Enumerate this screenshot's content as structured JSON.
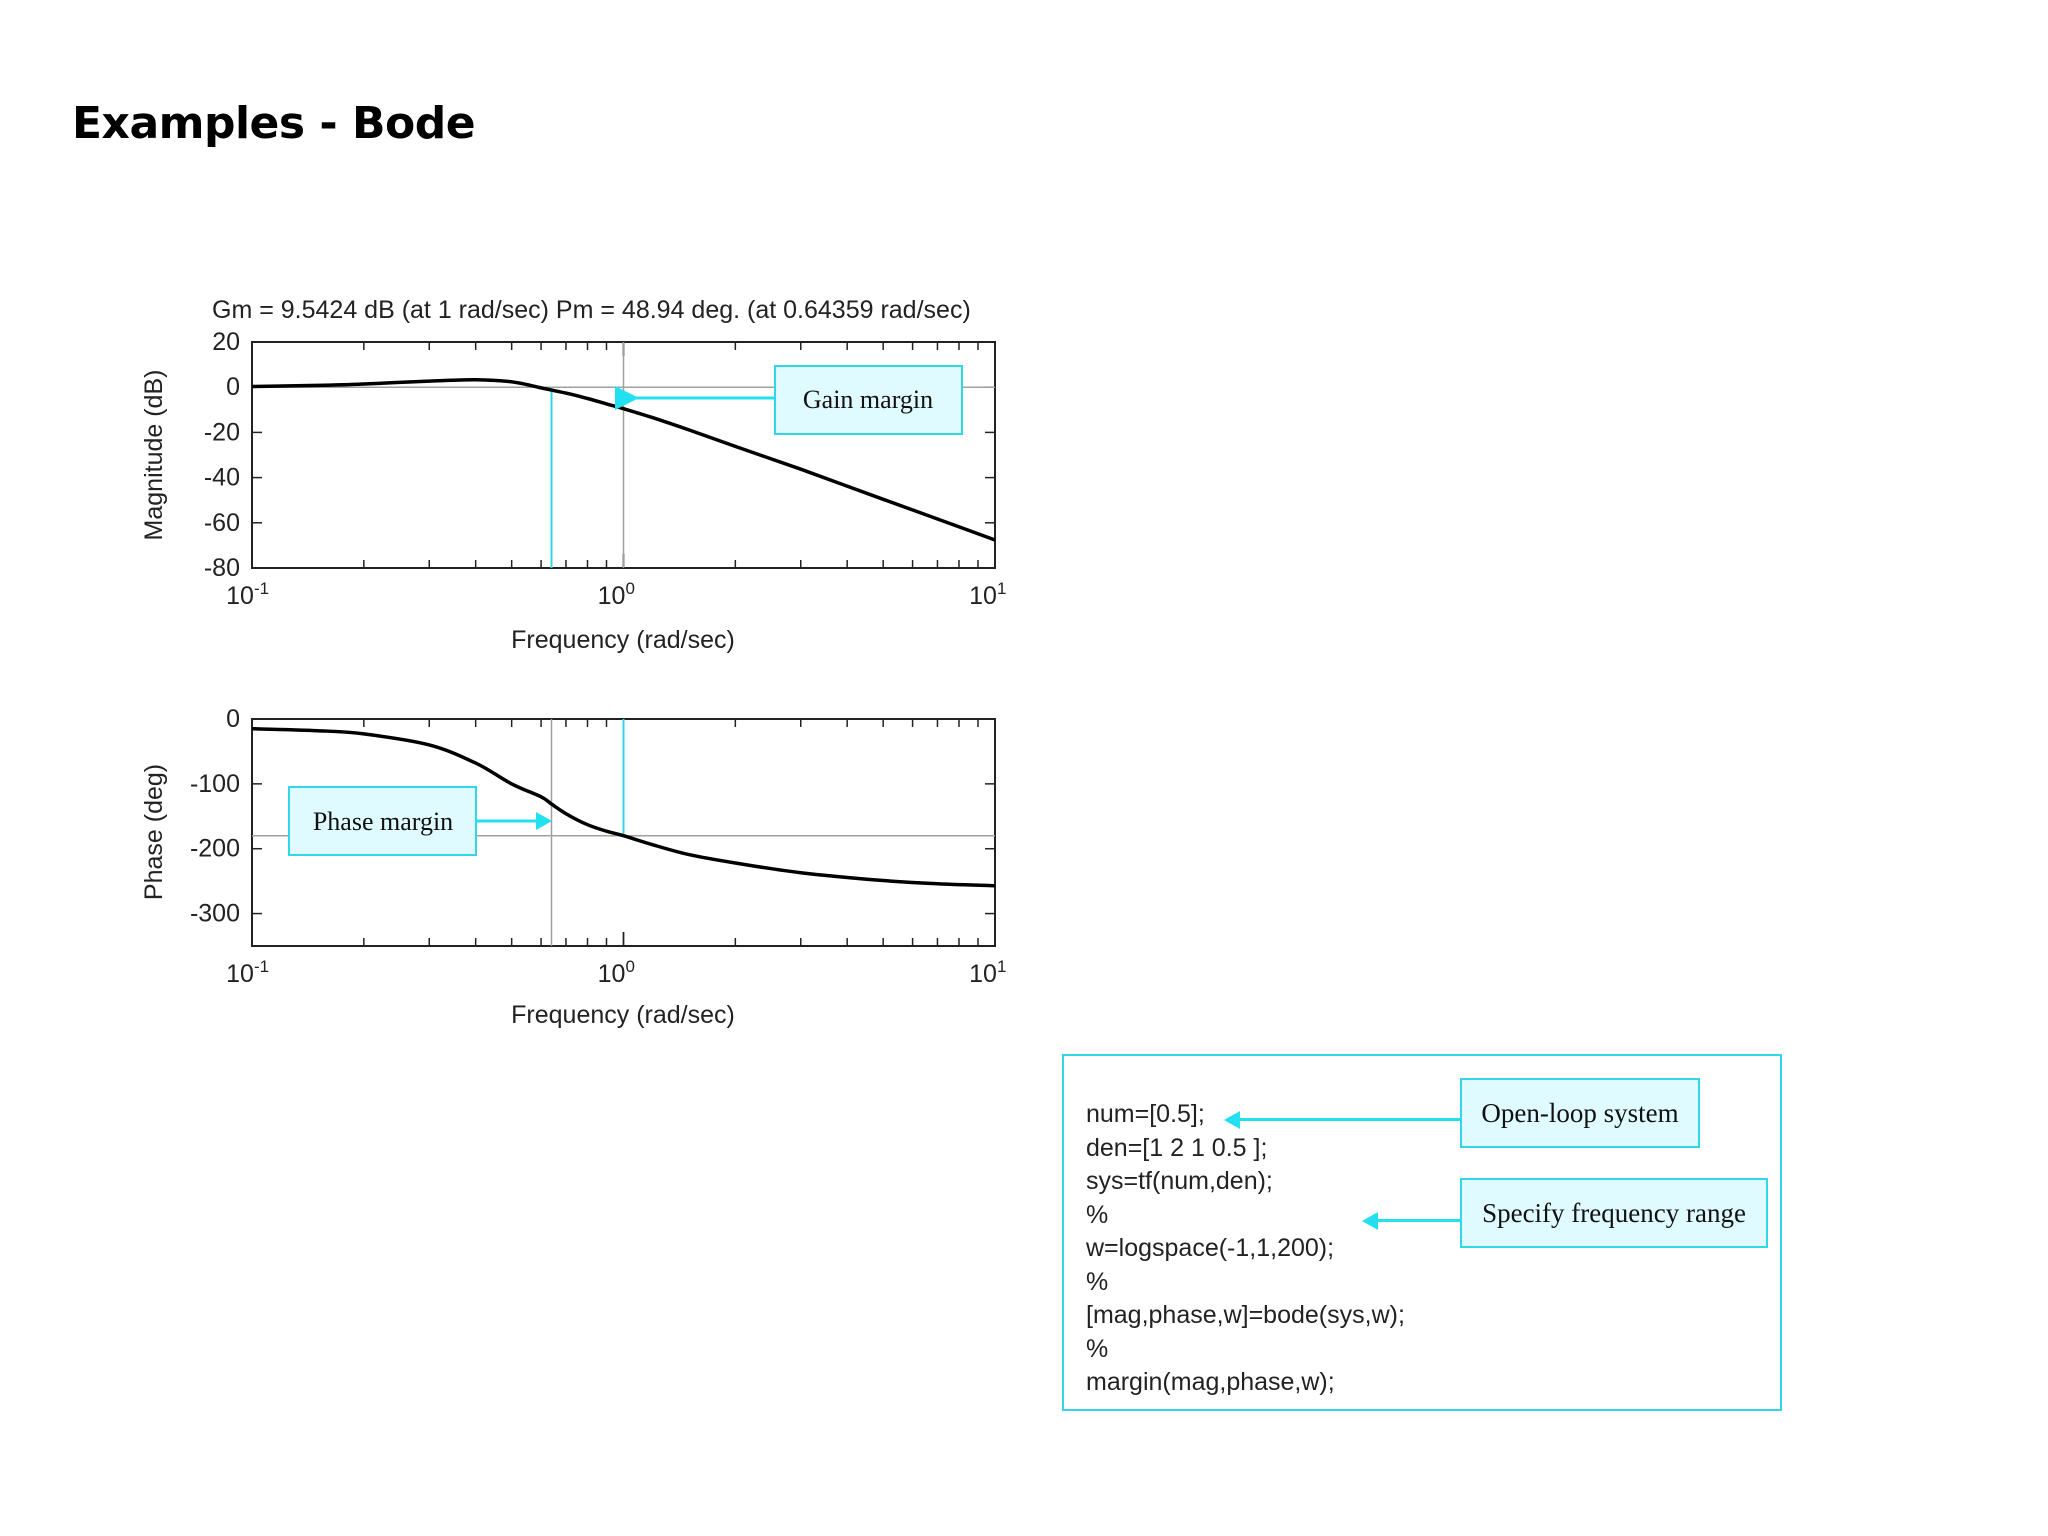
{
  "page": {
    "title": "Examples - Bode"
  },
  "chart_data": [
    {
      "type": "line",
      "title": "Gm = 9.5424 dB (at 1 rad/sec) Pm = 48.94 deg. (at 0.64359 rad/sec)",
      "xlabel": "Frequency (rad/sec)",
      "ylabel": "Magnitude (dB)",
      "xscale": "log",
      "xlim": [
        0.1,
        10
      ],
      "ylim": [
        -80,
        20
      ],
      "xticks": [
        "10",
        "10",
        "10"
      ],
      "xtick_exponents": [
        "-1",
        "0",
        "1"
      ],
      "yticks": [
        "20",
        "0",
        "-20",
        "-40",
        "-60",
        "-80"
      ],
      "series": [
        {
          "x": [
            0.1,
            0.15,
            0.2,
            0.3,
            0.4,
            0.5,
            0.6,
            0.7,
            0.8,
            0.9,
            1.0,
            1.2,
            1.5,
            2.0,
            3.0,
            5.0,
            7.0,
            10.0
          ],
          "y": [
            0.3,
            0.8,
            1.4,
            2.7,
            3.3,
            2.4,
            -0.3,
            -2.6,
            -5.0,
            -7.4,
            -9.5,
            -13.5,
            -18.9,
            -26.2,
            -36.3,
            -49.6,
            -58.3,
            -67.6
          ]
        }
      ],
      "reference_lines": {
        "horizontal_y": 0,
        "vertical_x": 1.0,
        "crossover_marker_x": 0.64
      },
      "annotation": "Gain margin",
      "colors": {
        "curve": "#000000",
        "marker": "#33d6e8",
        "grid": "#a0a0a0"
      }
    },
    {
      "type": "line",
      "xlabel": "Frequency (rad/sec)",
      "ylabel": "Phase (deg)",
      "xscale": "log",
      "xlim": [
        0.1,
        10
      ],
      "ylim": [
        -350,
        0
      ],
      "xticks": [
        "10",
        "10",
        "10"
      ],
      "xtick_exponents": [
        "-1",
        "0",
        "1"
      ],
      "yticks": [
        "0",
        "-100",
        "-200",
        "-300"
      ],
      "series": [
        {
          "x": [
            0.1,
            0.15,
            0.2,
            0.3,
            0.4,
            0.5,
            0.6,
            0.64,
            0.7,
            0.8,
            0.9,
            1.0,
            1.2,
            1.5,
            2.0,
            3.0,
            5.0,
            7.0,
            10.0
          ],
          "y": [
            -15,
            -18,
            -23,
            -40,
            -68,
            -100,
            -120,
            -131,
            -146,
            -163,
            -173,
            -180,
            -194,
            -209,
            -222,
            -237,
            -249,
            -254,
            -257
          ]
        }
      ],
      "reference_lines": {
        "horizontal_y": -180,
        "vertical_x": 0.64,
        "crossover_marker_x": 1.0
      },
      "annotation": "Phase margin",
      "colors": {
        "curve": "#000000",
        "marker": "#33d6e8",
        "grid": "#a0a0a0"
      }
    }
  ],
  "code": {
    "lines": [
      "num=[0.5];",
      "den=[1 2 1 0.5 ];",
      "sys=tf(num,den);",
      "%",
      "w=logspace(-1,1,200);",
      "%",
      "[mag,phase,w]=bode(sys,w);",
      "%",
      "margin(mag,phase,w);"
    ],
    "callouts": {
      "open_loop": "Open-loop system",
      "freq_range": "Specify frequency range"
    }
  },
  "accent_color": "#33d6e8"
}
